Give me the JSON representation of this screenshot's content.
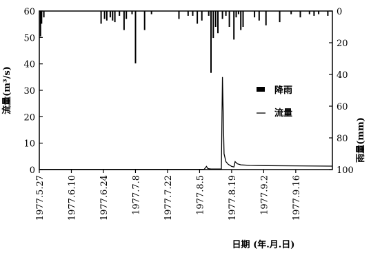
{
  "chart_data": {
    "type": "bar-line-combo",
    "xlabel": "日期 (年.月.日)",
    "ylabel_left": "流量(m³/s)",
    "ylabel_right": "雨量(mm)",
    "y_left_lim": [
      0,
      60
    ],
    "y_left_ticks": [
      "0",
      "10",
      "20",
      "30",
      "40",
      "50",
      "60"
    ],
    "y_right_lim": [
      0,
      100
    ],
    "y_right_inverted": true,
    "y_right_ticks": [
      "0",
      "20",
      "40",
      "60",
      "80",
      "100"
    ],
    "x_range_days": [
      0,
      128
    ],
    "x_ticks": [
      {
        "day": 0,
        "label": "1977.5.27"
      },
      {
        "day": 14,
        "label": "1977.6.10"
      },
      {
        "day": 28,
        "label": "1977.6.24"
      },
      {
        "day": 42,
        "label": "1977.7.8"
      },
      {
        "day": 56,
        "label": "1977.7.22"
      },
      {
        "day": 70,
        "label": "1977.8.5"
      },
      {
        "day": 84,
        "label": "1977.8.19"
      },
      {
        "day": 98,
        "label": "1977.9.2"
      },
      {
        "day": 112,
        "label": "1977.9.16"
      }
    ],
    "legend": [
      {
        "label": "降雨",
        "symbol": "bar"
      },
      {
        "label": "流量",
        "symbol": "line"
      }
    ],
    "legend_position": "center-right",
    "rainfall_mm": [
      {
        "day": 0.5,
        "value": 16
      },
      {
        "day": 1,
        "value": 8
      },
      {
        "day": 2,
        "value": 4
      },
      {
        "day": 27,
        "value": 8
      },
      {
        "day": 28.5,
        "value": 5
      },
      {
        "day": 29.5,
        "value": 6
      },
      {
        "day": 31,
        "value": 4
      },
      {
        "day": 32,
        "value": 6
      },
      {
        "day": 33,
        "value": 7
      },
      {
        "day": 35,
        "value": 3
      },
      {
        "day": 37,
        "value": 12
      },
      {
        "day": 38,
        "value": 5
      },
      {
        "day": 40.5,
        "value": 2
      },
      {
        "day": 42,
        "value": 33
      },
      {
        "day": 46,
        "value": 12
      },
      {
        "day": 49,
        "value": 2
      },
      {
        "day": 61,
        "value": 5
      },
      {
        "day": 65,
        "value": 3
      },
      {
        "day": 67,
        "value": 3
      },
      {
        "day": 69,
        "value": 8
      },
      {
        "day": 71,
        "value": 6
      },
      {
        "day": 74,
        "value": 3
      },
      {
        "day": 75,
        "value": 39
      },
      {
        "day": 76,
        "value": 17
      },
      {
        "day": 77,
        "value": 10
      },
      {
        "day": 78,
        "value": 14
      },
      {
        "day": 80,
        "value": 5
      },
      {
        "day": 81.5,
        "value": 3
      },
      {
        "day": 83,
        "value": 10
      },
      {
        "day": 85,
        "value": 18
      },
      {
        "day": 86,
        "value": 4
      },
      {
        "day": 87,
        "value": 2
      },
      {
        "day": 88,
        "value": 12
      },
      {
        "day": 89,
        "value": 10
      },
      {
        "day": 94,
        "value": 4
      },
      {
        "day": 96,
        "value": 6
      },
      {
        "day": 99,
        "value": 9
      },
      {
        "day": 105,
        "value": 7
      },
      {
        "day": 110,
        "value": 2
      },
      {
        "day": 114,
        "value": 4
      },
      {
        "day": 118,
        "value": 2
      },
      {
        "day": 120,
        "value": 3
      },
      {
        "day": 122,
        "value": 2
      },
      {
        "day": 126,
        "value": 3
      }
    ],
    "flow_m3s": [
      [
        0,
        0.1
      ],
      [
        72,
        0.1
      ],
      [
        73,
        1.2
      ],
      [
        73.5,
        0.5
      ],
      [
        74,
        0.3
      ],
      [
        75,
        0.2
      ],
      [
        79.5,
        0.2
      ],
      [
        80,
        35
      ],
      [
        80.7,
        6
      ],
      [
        81.5,
        3
      ],
      [
        82.5,
        2
      ],
      [
        84,
        1.2
      ],
      [
        85,
        1
      ],
      [
        85.5,
        3
      ],
      [
        86.5,
        2.2
      ],
      [
        88,
        1.8
      ],
      [
        92,
        1.6
      ],
      [
        100,
        1.5
      ],
      [
        112,
        1.4
      ],
      [
        128,
        1.3
      ]
    ]
  }
}
